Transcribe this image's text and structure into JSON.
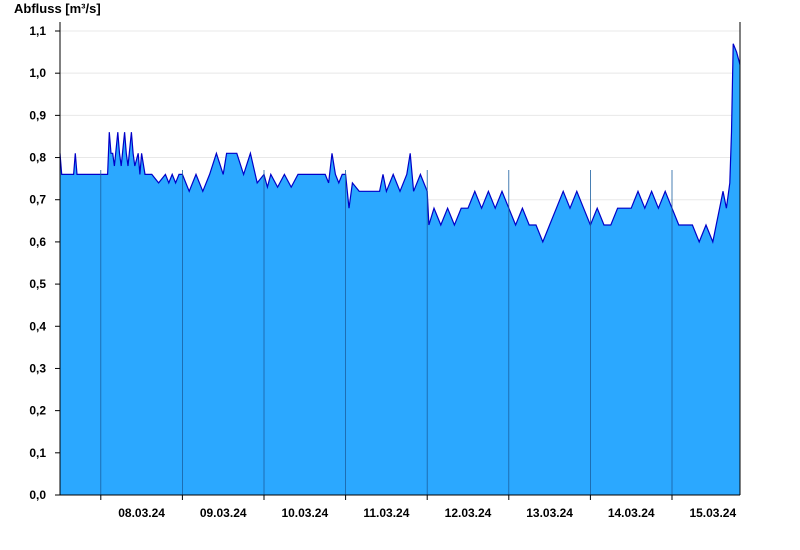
{
  "chart_data": {
    "type": "area",
    "ylabel": "Abfluss [m³/s]",
    "ylim": [
      0,
      1.1
    ],
    "y_ticks": [
      "0,0",
      "0,1",
      "0,2",
      "0,3",
      "0,4",
      "0,5",
      "0,6",
      "0,7",
      "0,8",
      "0,9",
      "1,0",
      "1,1"
    ],
    "y_tick_values": [
      0,
      0.1,
      0.2,
      0.3,
      0.4,
      0.5,
      0.6,
      0.7,
      0.8,
      0.9,
      1.0,
      1.1
    ],
    "x_range": [
      "2024-03-07T12:00",
      "2024-03-15T20:00"
    ],
    "x_ticks": [
      "08.03.24",
      "09.03.24",
      "10.03.24",
      "11.03.24",
      "12.03.24",
      "13.03.24",
      "14.03.24",
      "15.03.24"
    ],
    "day_boundaries": [
      "2024-03-08",
      "2024-03-09",
      "2024-03-10",
      "2024-03-11",
      "2024-03-12",
      "2024-03-13",
      "2024-03-14",
      "2024-03-15",
      "2024-03-16"
    ],
    "grid": true,
    "fill_color": "#2ba8ff",
    "line_color": "#0000c8",
    "series": [
      {
        "x": [
          "2024-03-07T12:00",
          "2024-03-07T12:30",
          "2024-03-07T13:00",
          "2024-03-07T16:00",
          "2024-03-07T16:30",
          "2024-03-07T17:00",
          "2024-03-08T00:00",
          "2024-03-08T02:00",
          "2024-03-08T02:30",
          "2024-03-08T03:00",
          "2024-03-08T03:30",
          "2024-03-08T04:00",
          "2024-03-08T05:00",
          "2024-03-08T05:30",
          "2024-03-08T06:00",
          "2024-03-08T07:00",
          "2024-03-08T07:30",
          "2024-03-08T08:00",
          "2024-03-08T09:00",
          "2024-03-08T09:30",
          "2024-03-08T10:00",
          "2024-03-08T11:00",
          "2024-03-08T11:30",
          "2024-03-08T12:00",
          "2024-03-08T13:00",
          "2024-03-08T15:00",
          "2024-03-08T17:00",
          "2024-03-08T19:00",
          "2024-03-08T20:00",
          "2024-03-08T21:00",
          "2024-03-08T22:00",
          "2024-03-08T23:00",
          "2024-03-09T00:00",
          "2024-03-09T02:00",
          "2024-03-09T04:00",
          "2024-03-09T06:00",
          "2024-03-09T08:00",
          "2024-03-09T10:00",
          "2024-03-09T12:00",
          "2024-03-09T13:00",
          "2024-03-09T14:00",
          "2024-03-09T15:00",
          "2024-03-09T16:00",
          "2024-03-09T18:00",
          "2024-03-09T20:00",
          "2024-03-09T22:00",
          "2024-03-10T00:00",
          "2024-03-10T01:00",
          "2024-03-10T02:00",
          "2024-03-10T04:00",
          "2024-03-10T06:00",
          "2024-03-10T08:00",
          "2024-03-10T10:00",
          "2024-03-10T12:00",
          "2024-03-10T14:00",
          "2024-03-10T16:00",
          "2024-03-10T18:00",
          "2024-03-10T19:00",
          "2024-03-10T20:00",
          "2024-03-10T21:00",
          "2024-03-10T22:00",
          "2024-03-10T23:00",
          "2024-03-11T00:00",
          "2024-03-11T01:00",
          "2024-03-11T02:00",
          "2024-03-11T04:00",
          "2024-03-11T06:00",
          "2024-03-11T08:00",
          "2024-03-11T10:00",
          "2024-03-11T11:00",
          "2024-03-11T12:00",
          "2024-03-11T14:00",
          "2024-03-11T16:00",
          "2024-03-11T18:00",
          "2024-03-11T19:00",
          "2024-03-11T20:00",
          "2024-03-11T22:00",
          "2024-03-12T00:00",
          "2024-03-12T00:30",
          "2024-03-12T02:00",
          "2024-03-12T04:00",
          "2024-03-12T06:00",
          "2024-03-12T08:00",
          "2024-03-12T10:00",
          "2024-03-12T12:00",
          "2024-03-12T14:00",
          "2024-03-12T16:00",
          "2024-03-12T18:00",
          "2024-03-12T20:00",
          "2024-03-12T22:00",
          "2024-03-13T00:00",
          "2024-03-13T02:00",
          "2024-03-13T04:00",
          "2024-03-13T06:00",
          "2024-03-13T08:00",
          "2024-03-13T10:00",
          "2024-03-13T12:00",
          "2024-03-13T14:00",
          "2024-03-13T16:00",
          "2024-03-13T18:00",
          "2024-03-13T20:00",
          "2024-03-13T22:00",
          "2024-03-14T00:00",
          "2024-03-14T02:00",
          "2024-03-14T04:00",
          "2024-03-14T06:00",
          "2024-03-14T08:00",
          "2024-03-14T10:00",
          "2024-03-14T12:00",
          "2024-03-14T14:00",
          "2024-03-14T16:00",
          "2024-03-14T18:00",
          "2024-03-14T20:00",
          "2024-03-14T22:00",
          "2024-03-15T00:00",
          "2024-03-15T02:00",
          "2024-03-15T04:00",
          "2024-03-15T06:00",
          "2024-03-15T08:00",
          "2024-03-15T10:00",
          "2024-03-15T12:00",
          "2024-03-15T13:00",
          "2024-03-15T14:00",
          "2024-03-15T15:00",
          "2024-03-15T16:00",
          "2024-03-15T17:00",
          "2024-03-15T17:30",
          "2024-03-15T18:00",
          "2024-03-15T19:00",
          "2024-03-15T20:00"
        ],
        "y": [
          0.81,
          0.76,
          0.76,
          0.76,
          0.81,
          0.76,
          0.76,
          0.76,
          0.86,
          0.81,
          0.81,
          0.78,
          0.86,
          0.81,
          0.78,
          0.86,
          0.81,
          0.78,
          0.86,
          0.81,
          0.78,
          0.81,
          0.76,
          0.81,
          0.76,
          0.76,
          0.74,
          0.76,
          0.74,
          0.76,
          0.74,
          0.76,
          0.76,
          0.72,
          0.76,
          0.72,
          0.76,
          0.81,
          0.76,
          0.81,
          0.81,
          0.81,
          0.81,
          0.76,
          0.81,
          0.74,
          0.76,
          0.73,
          0.76,
          0.73,
          0.76,
          0.73,
          0.76,
          0.76,
          0.76,
          0.76,
          0.76,
          0.74,
          0.81,
          0.76,
          0.74,
          0.76,
          0.76,
          0.68,
          0.74,
          0.72,
          0.72,
          0.72,
          0.72,
          0.76,
          0.72,
          0.76,
          0.72,
          0.76,
          0.81,
          0.72,
          0.76,
          0.72,
          0.64,
          0.68,
          0.64,
          0.68,
          0.64,
          0.68,
          0.68,
          0.72,
          0.68,
          0.72,
          0.68,
          0.72,
          0.68,
          0.64,
          0.68,
          0.64,
          0.64,
          0.6,
          0.64,
          0.68,
          0.72,
          0.68,
          0.72,
          0.68,
          0.64,
          0.68,
          0.64,
          0.64,
          0.68,
          0.68,
          0.68,
          0.72,
          0.68,
          0.72,
          0.68,
          0.72,
          0.68,
          0.64,
          0.64,
          0.64,
          0.6,
          0.64,
          0.6,
          0.64,
          0.68,
          0.72,
          0.68,
          0.74,
          0.86,
          1.07,
          1.05,
          1.02
        ]
      }
    ]
  }
}
